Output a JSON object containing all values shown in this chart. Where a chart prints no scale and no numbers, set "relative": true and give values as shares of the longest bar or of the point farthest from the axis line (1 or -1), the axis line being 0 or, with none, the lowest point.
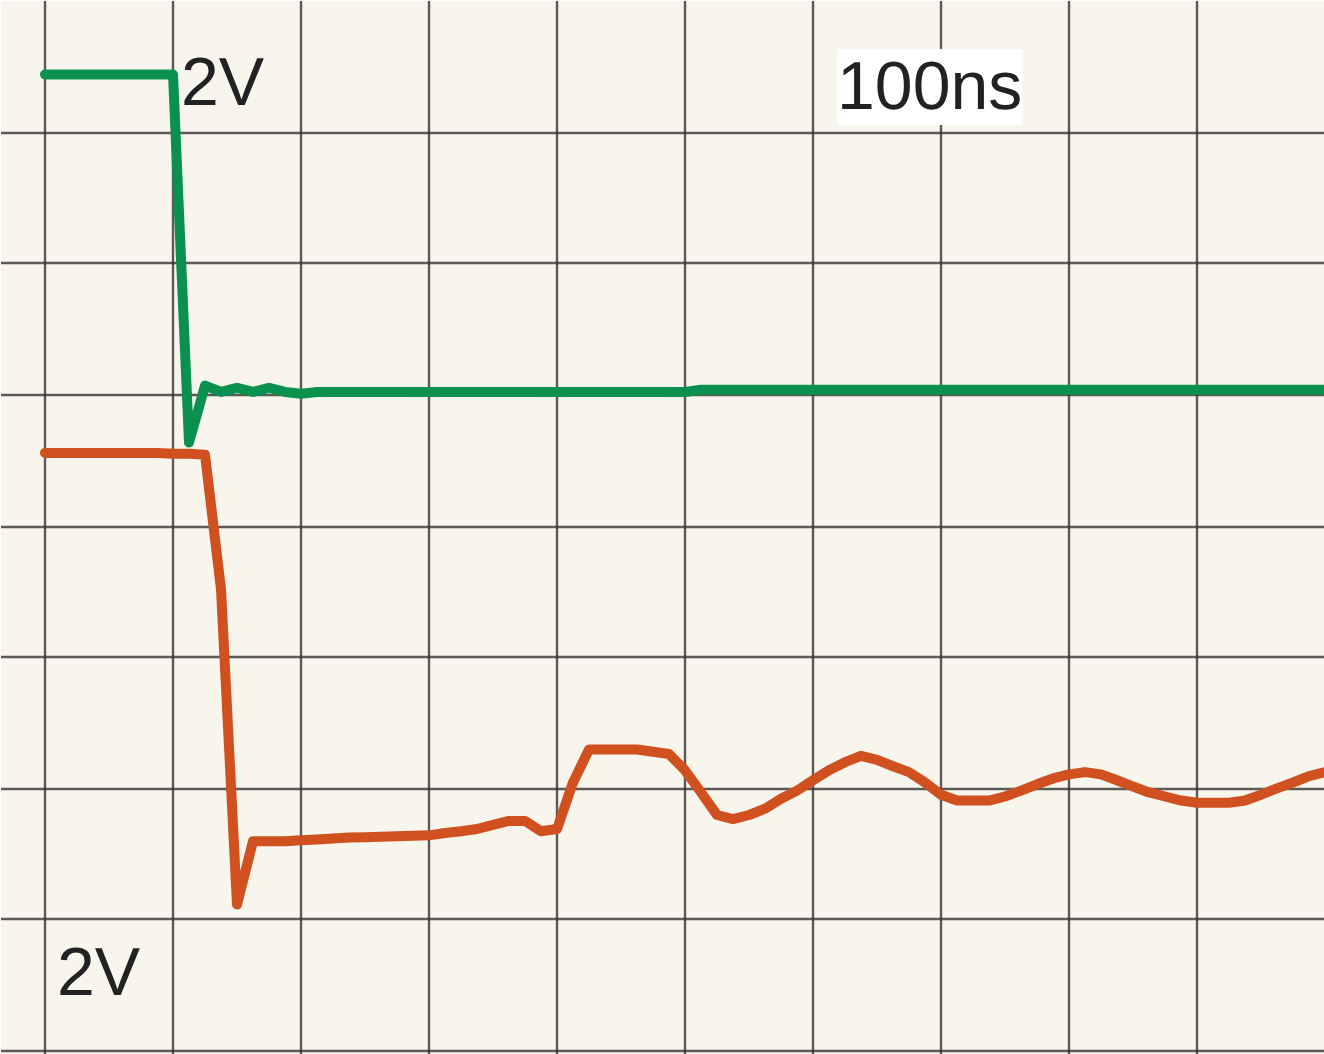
{
  "chart_data": {
    "type": "line",
    "relative": true,
    "grid": true,
    "marker": "none",
    "line_style": "solid",
    "categories": [
      null,
      null,
      null,
      null,
      null,
      null,
      null,
      null,
      null,
      null,
      null,
      null,
      null,
      null,
      null,
      null,
      null,
      null,
      null,
      null,
      null,
      null,
      null,
      null,
      null,
      null,
      null,
      null,
      null,
      null,
      null,
      null,
      null,
      null,
      null,
      null,
      null,
      null,
      null,
      null,
      null,
      null,
      null,
      null,
      null,
      null,
      null,
      null,
      null,
      null,
      null,
      null,
      null,
      null,
      null,
      null,
      null,
      null,
      null,
      null,
      null,
      null,
      null,
      null,
      null,
      null,
      null,
      null,
      null,
      null,
      null,
      null,
      null,
      null,
      null,
      null,
      null,
      null,
      null,
      null,
      null
    ],
    "series": [
      {
        "color": "#0a9150",
        "values": [
          1,
          1,
          1,
          1,
          1,
          1,
          1,
          1,
          1,
          0.185,
          0.311,
          0.297,
          0.306,
          0.297,
          0.306,
          0.297,
          0.293,
          0.297,
          0.297,
          0.297,
          0.297,
          0.297,
          0.297,
          0.297,
          0.297,
          0.297,
          0.297,
          0.297,
          0.297,
          0.297,
          0.297,
          0.297,
          0.297,
          0.297,
          0.297,
          0.297,
          0.297,
          0.297,
          0.297,
          0.297,
          0.297,
          0.302,
          0.302,
          0.302,
          0.302,
          0.302,
          0.302,
          0.302,
          0.302,
          0.302,
          0.302,
          0.302,
          0.302,
          0.302,
          0.302,
          0.302,
          0.302,
          0.302,
          0.302,
          0.302,
          0.302,
          0.302,
          0.302,
          0.302,
          0.302,
          0.302,
          0.302,
          0.302,
          0.302,
          0.302,
          0.302,
          0.302,
          0.302,
          0.302,
          0.302,
          0.302,
          0.302,
          0.302,
          0.302,
          0.302,
          0.302
        ]
      },
      {
        "color": "#d05020",
        "values": [
          0.162,
          0.162,
          0.162,
          0.162,
          0.162,
          0.162,
          0.162,
          0.162,
          0.16,
          0.16,
          0.158,
          -0.14,
          -0.838,
          -0.698,
          -0.698,
          -0.698,
          -0.696,
          -0.694,
          -0.692,
          -0.69,
          -0.689,
          -0.688,
          -0.687,
          -0.686,
          -0.685,
          -0.68,
          -0.676,
          -0.671,
          -0.662,
          -0.653,
          -0.653,
          -0.676,
          -0.671,
          -0.568,
          -0.495,
          -0.495,
          -0.495,
          -0.495,
          -0.5,
          -0.505,
          -0.541,
          -0.59,
          -0.64,
          -0.649,
          -0.64,
          -0.626,
          -0.604,
          -0.586,
          -0.563,
          -0.541,
          -0.523,
          -0.509,
          -0.518,
          -0.532,
          -0.545,
          -0.568,
          -0.595,
          -0.608,
          -0.608,
          -0.608,
          -0.599,
          -0.586,
          -0.572,
          -0.559,
          -0.55,
          -0.545,
          -0.55,
          -0.563,
          -0.577,
          -0.59,
          -0.599,
          -0.608,
          -0.613,
          -0.613,
          -0.613,
          -0.608,
          -0.595,
          -0.581,
          -0.568,
          -0.554,
          -0.545
        ]
      }
    ],
    "annotations": [
      "2V",
      "100ns",
      "2V"
    ]
  }
}
